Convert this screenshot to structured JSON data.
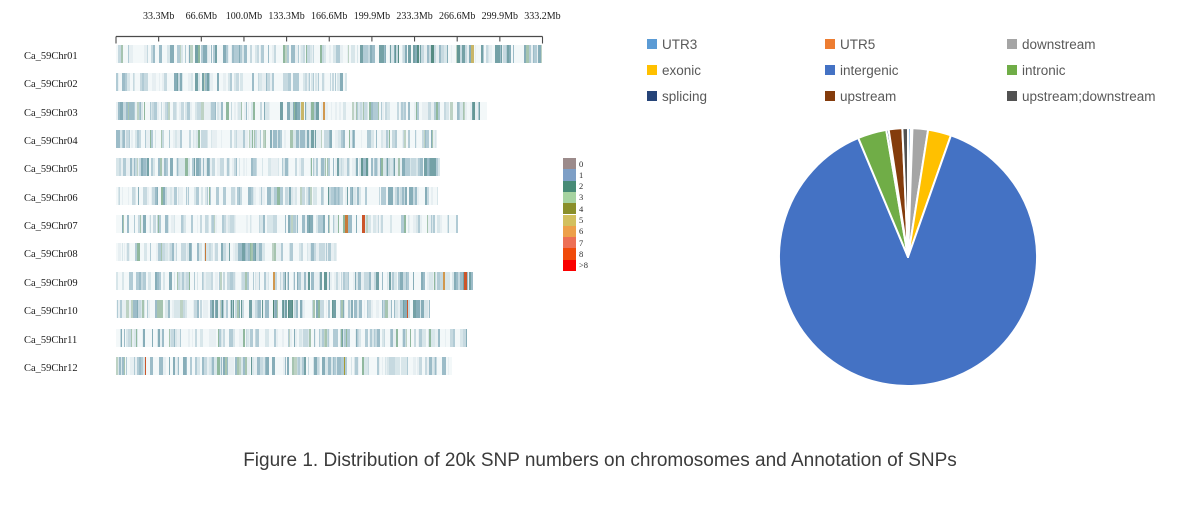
{
  "figure": {
    "caption": "Figure 1. Distribution of 20k SNP numbers on chromosomes and Annotation of SNPs"
  },
  "chart_data": [
    {
      "type": "heatmap",
      "title": "Distribution of 20k SNP numbers on chromosomes",
      "x_unit": "Mb",
      "x_tick_labels": [
        "33.3Mb",
        "66.6Mb",
        "100.0Mb",
        "133.3Mb",
        "166.6Mb",
        "199.9Mb",
        "233.3Mb",
        "266.6Mb",
        "299.9Mb",
        "333.2Mb"
      ],
      "x_tick_step_mb": 33.32,
      "x_max_mb": 333.2,
      "chromosomes": [
        {
          "name": "Ca_59Chr01",
          "length_mb": 333.2
        },
        {
          "name": "Ca_59Chr02",
          "length_mb": 180.3
        },
        {
          "name": "Ca_59Chr03",
          "length_mb": 289.9
        },
        {
          "name": "Ca_59Chr04",
          "length_mb": 250.8
        },
        {
          "name": "Ca_59Chr05",
          "length_mb": 253.1
        },
        {
          "name": "Ca_59Chr06",
          "length_mb": 251.6
        },
        {
          "name": "Ca_59Chr07",
          "length_mb": 267.2
        },
        {
          "name": "Ca_59Chr08",
          "length_mb": 172.7
        },
        {
          "name": "Ca_59Chr09",
          "length_mb": 278.9
        },
        {
          "name": "Ca_59Chr10",
          "length_mb": 245.3
        },
        {
          "name": "Ca_59Chr11",
          "length_mb": 274.2
        },
        {
          "name": "Ca_59Chr12",
          "length_mb": 262.5
        }
      ],
      "density_scale": [
        {
          "label": "0",
          "color": "#9C8B8B"
        },
        {
          "label": "1",
          "color": "#7E9FC6"
        },
        {
          "label": "2",
          "color": "#478A76"
        },
        {
          "label": "3",
          "color": "#A6D3A0"
        },
        {
          "label": "4",
          "color": "#8A8F2A"
        },
        {
          "label": "5",
          "color": "#D2C05E"
        },
        {
          "label": "6",
          "color": "#EDA04A"
        },
        {
          "label": "7",
          "color": "#ED7055"
        },
        {
          "label": "8",
          "color": "#F04A0A"
        },
        {
          "label": ">8",
          "color": "#FA0000"
        }
      ]
    },
    {
      "type": "pie",
      "title": "Annotation of SNPs",
      "legend_position": "top",
      "slices": [
        {
          "label": "UTR3",
          "color": "#5B9BD5",
          "percent": 0.35
        },
        {
          "label": "UTR5",
          "color": "#ED7D31",
          "percent": 0.2
        },
        {
          "label": "downstream",
          "color": "#A5A5A5",
          "percent": 1.95
        },
        {
          "label": "exonic",
          "color": "#FFC000",
          "percent": 2.9
        },
        {
          "label": "intergenic",
          "color": "#4472C4",
          "percent": 88.3
        },
        {
          "label": "intronic",
          "color": "#70AD47",
          "percent": 3.6
        },
        {
          "label": "splicing",
          "color": "#264478",
          "percent": 0.3
        },
        {
          "label": "upstream",
          "color": "#843C0C",
          "percent": 1.7
        },
        {
          "label": "upstream;downstream",
          "color": "#525252",
          "percent": 0.7
        }
      ]
    }
  ]
}
